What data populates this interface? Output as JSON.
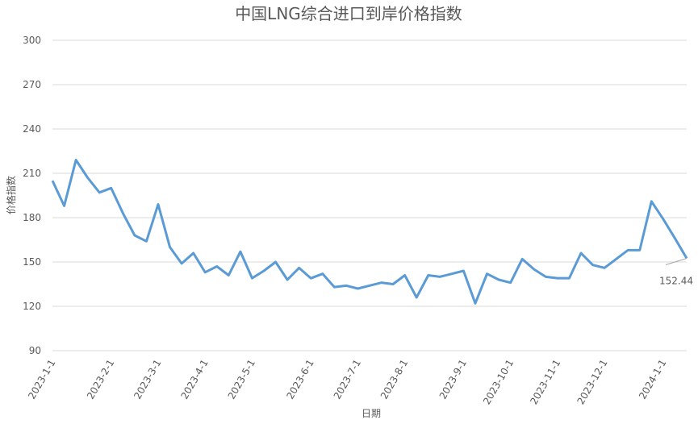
{
  "chart_data": {
    "type": "line",
    "title": "中国LNG综合进口到岸价格指数",
    "x_label": "日期",
    "y_label": "价格指数",
    "categories": [
      "2023-1-1",
      null,
      null,
      null,
      null,
      "2023-2-1",
      null,
      null,
      null,
      "2023-3-1",
      null,
      null,
      null,
      "2023-4-1",
      null,
      null,
      null,
      "2023-5-1",
      null,
      null,
      null,
      null,
      "2023-6-1",
      null,
      null,
      null,
      "2023-7-1",
      null,
      null,
      null,
      "2023-8-1",
      null,
      null,
      null,
      null,
      "2023-9-1",
      null,
      null,
      null,
      "2023-10-1",
      null,
      null,
      null,
      "2023-11-1",
      null,
      null,
      null,
      "2023-12-1",
      null,
      null,
      null,
      null,
      "2024-1-1",
      null,
      null
    ],
    "series": [
      {
        "name": "价格指数",
        "color": "#5b9bd5",
        "values": [
          205,
          188,
          219,
          207,
          197,
          200,
          183,
          168,
          164,
          189,
          160,
          149,
          156,
          143,
          147,
          141,
          157,
          139,
          144,
          150,
          138,
          146,
          139,
          142,
          133,
          134,
          132,
          134,
          136,
          135,
          141,
          126,
          141,
          140,
          142,
          144,
          122,
          142,
          138,
          136,
          152,
          145,
          140,
          139,
          139,
          156,
          148,
          146,
          152,
          158,
          158,
          191,
          179,
          166,
          152.44
        ]
      }
    ],
    "ylim": [
      90,
      300
    ],
    "yticks": [
      90,
      120,
      150,
      180,
      210,
      240,
      270,
      300
    ],
    "grid": true
  }
}
